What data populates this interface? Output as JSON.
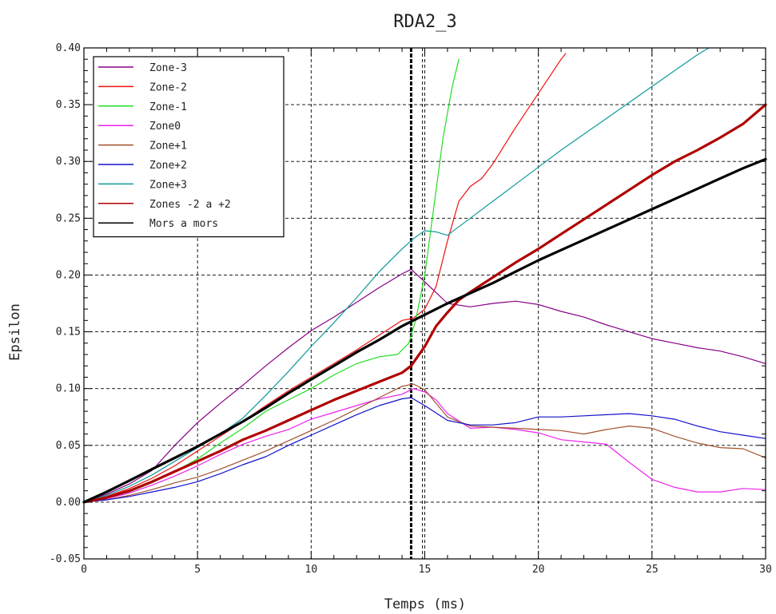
{
  "chart_data": {
    "type": "line",
    "title": "RDA2_3",
    "xlabel": "Temps (ms)",
    "ylabel": "Epsilon",
    "xlim": [
      0,
      30
    ],
    "ylim": [
      -0.05,
      0.4
    ],
    "x_ticks": [
      0,
      5,
      10,
      15,
      20,
      25,
      30
    ],
    "x_tick_labels": [
      "0",
      "5",
      "10",
      "15",
      "20",
      "25",
      "30"
    ],
    "y_ticks": [
      -0.05,
      0.0,
      0.05,
      0.1,
      0.15,
      0.2,
      0.25,
      0.3,
      0.35,
      0.4
    ],
    "y_tick_labels": [
      "-0.05",
      "0.00",
      "0.05",
      "0.10",
      "0.15",
      "0.20",
      "0.25",
      "0.30",
      "0.35",
      "0.40"
    ],
    "grid": true,
    "legend_position": "top-left",
    "vertical_markers": [
      {
        "x": 14.4,
        "style": "thick-dashed"
      },
      {
        "x": 14.9,
        "style": "dashed"
      }
    ],
    "series": [
      {
        "name": "Zone-3",
        "color": "#880088",
        "width": 1.2,
        "x": [
          0,
          1,
          2,
          3,
          4,
          5,
          6,
          7,
          8,
          9,
          10,
          11,
          12,
          13,
          14,
          14.4,
          15,
          16,
          17,
          18,
          19,
          20,
          21,
          22,
          23,
          24,
          25,
          26,
          27,
          28,
          29,
          30
        ],
        "y": [
          0,
          0.007,
          0.016,
          0.028,
          0.05,
          0.07,
          0.087,
          0.103,
          0.12,
          0.136,
          0.151,
          0.163,
          0.176,
          0.189,
          0.201,
          0.205,
          0.194,
          0.175,
          0.172,
          0.175,
          0.177,
          0.174,
          0.168,
          0.163,
          0.156,
          0.15,
          0.144,
          0.14,
          0.136,
          0.133,
          0.128,
          0.122
        ]
      },
      {
        "name": "Zone-2",
        "color": "#ee1111",
        "width": 1.2,
        "x": [
          0,
          1,
          2,
          3,
          4,
          5,
          6,
          7,
          8,
          9,
          10,
          11,
          12,
          13,
          14,
          14.5,
          15,
          15.5,
          16,
          16.5,
          17,
          17.5,
          18,
          19,
          20,
          21,
          21.2
        ],
        "y": [
          0,
          0.005,
          0.012,
          0.021,
          0.032,
          0.045,
          0.058,
          0.071,
          0.085,
          0.098,
          0.11,
          0.122,
          0.134,
          0.147,
          0.16,
          0.162,
          0.17,
          0.19,
          0.23,
          0.265,
          0.278,
          0.285,
          0.298,
          0.33,
          0.36,
          0.39,
          0.395
        ]
      },
      {
        "name": "Zone-1",
        "color": "#22dd22",
        "width": 1.2,
        "x": [
          0,
          1,
          2,
          3,
          4,
          5,
          6,
          7,
          8,
          9,
          10,
          11,
          12,
          13,
          13.8,
          14.3,
          14.6,
          15,
          15.4,
          15.8,
          16.2,
          16.5
        ],
        "y": [
          0,
          0.004,
          0.009,
          0.017,
          0.027,
          0.038,
          0.052,
          0.065,
          0.08,
          0.09,
          0.1,
          0.112,
          0.122,
          0.128,
          0.13,
          0.14,
          0.16,
          0.2,
          0.26,
          0.32,
          0.365,
          0.39
        ]
      },
      {
        "name": "Zone0",
        "color": "#ee22ee",
        "width": 1.2,
        "x": [
          0,
          1,
          2,
          3,
          4,
          5,
          6,
          7,
          8,
          9,
          10,
          11,
          12,
          13,
          14,
          14.5,
          15,
          15.5,
          16,
          17,
          18,
          19,
          20,
          21,
          22,
          23,
          24,
          25,
          26,
          27,
          28,
          29,
          30
        ],
        "y": [
          0,
          0.003,
          0.008,
          0.015,
          0.023,
          0.032,
          0.042,
          0.051,
          0.058,
          0.064,
          0.073,
          0.079,
          0.085,
          0.091,
          0.095,
          0.1,
          0.097,
          0.09,
          0.078,
          0.065,
          0.066,
          0.064,
          0.061,
          0.055,
          0.053,
          0.051,
          0.035,
          0.02,
          0.013,
          0.009,
          0.009,
          0.012,
          0.011
        ]
      },
      {
        "name": "Zone+1",
        "color": "#a0522d",
        "width": 1.2,
        "x": [
          0,
          1,
          2,
          3,
          4,
          5,
          6,
          7,
          8,
          9,
          10,
          11,
          12,
          13,
          14,
          14.5,
          15,
          15.5,
          16,
          17,
          18,
          19,
          20,
          21,
          22,
          23,
          24,
          25,
          26,
          27,
          28,
          29,
          30
        ],
        "y": [
          0,
          0.002,
          0.006,
          0.011,
          0.017,
          0.022,
          0.029,
          0.037,
          0.045,
          0.054,
          0.063,
          0.072,
          0.082,
          0.092,
          0.102,
          0.104,
          0.099,
          0.087,
          0.075,
          0.067,
          0.066,
          0.065,
          0.064,
          0.063,
          0.06,
          0.064,
          0.067,
          0.065,
          0.058,
          0.052,
          0.048,
          0.047,
          0.039
        ]
      },
      {
        "name": "Zone+2",
        "color": "#1111cc",
        "width": 1.2,
        "x": [
          0,
          1,
          2,
          3,
          4,
          5,
          6,
          7,
          8,
          9,
          10,
          11,
          12,
          13,
          14,
          14.4,
          15,
          16,
          17,
          18,
          19,
          20,
          21,
          22,
          23,
          24,
          25,
          26,
          27,
          28,
          29,
          30
        ],
        "y": [
          0,
          0.002,
          0.005,
          0.009,
          0.013,
          0.018,
          0.025,
          0.033,
          0.04,
          0.05,
          0.059,
          0.068,
          0.077,
          0.085,
          0.091,
          0.092,
          0.085,
          0.072,
          0.068,
          0.068,
          0.07,
          0.075,
          0.075,
          0.076,
          0.077,
          0.078,
          0.076,
          0.073,
          0.067,
          0.062,
          0.059,
          0.056
        ]
      },
      {
        "name": "Zone+3",
        "color": "#119999",
        "width": 1.2,
        "x": [
          0,
          1,
          2,
          3,
          4,
          5,
          6,
          7,
          8,
          9,
          10,
          11,
          12,
          13,
          14,
          14.5,
          15,
          15.5,
          16,
          17,
          18,
          19,
          20,
          21,
          22,
          23,
          24,
          25,
          26,
          27,
          27.5
        ],
        "y": [
          0,
          0.006,
          0.014,
          0.024,
          0.036,
          0.048,
          0.06,
          0.074,
          0.094,
          0.115,
          0.137,
          0.158,
          0.18,
          0.203,
          0.223,
          0.232,
          0.239,
          0.238,
          0.235,
          0.25,
          0.265,
          0.28,
          0.295,
          0.31,
          0.324,
          0.338,
          0.352,
          0.366,
          0.38,
          0.394,
          0.4
        ]
      },
      {
        "name": "Zones -2 a +2",
        "color": "#b00000",
        "width": 3.2,
        "x": [
          0,
          1,
          2,
          3,
          4,
          5,
          6,
          7,
          8,
          9,
          10,
          11,
          12,
          13,
          14,
          14.4,
          15,
          15.5,
          16,
          16.5,
          17,
          18,
          19,
          20,
          21,
          22,
          23,
          24,
          25,
          26,
          27,
          28,
          29,
          30
        ],
        "y": [
          0,
          0.004,
          0.01,
          0.018,
          0.027,
          0.036,
          0.045,
          0.055,
          0.063,
          0.072,
          0.081,
          0.09,
          0.098,
          0.106,
          0.114,
          0.12,
          0.137,
          0.155,
          0.167,
          0.178,
          0.185,
          0.198,
          0.211,
          0.223,
          0.236,
          0.249,
          0.262,
          0.275,
          0.288,
          0.3,
          0.31,
          0.321,
          0.333,
          0.35
        ]
      },
      {
        "name": "Mors a mors",
        "color": "#000000",
        "width": 3.2,
        "x": [
          0,
          1,
          2,
          3,
          4,
          5,
          6,
          7,
          8,
          9,
          10,
          11,
          12,
          13,
          14,
          15,
          16,
          17,
          18,
          19,
          20,
          21,
          22,
          23,
          24,
          25,
          26,
          27,
          28,
          29,
          30
        ],
        "y": [
          0,
          0.009,
          0.019,
          0.029,
          0.039,
          0.049,
          0.06,
          0.071,
          0.083,
          0.096,
          0.108,
          0.12,
          0.132,
          0.143,
          0.155,
          0.165,
          0.175,
          0.184,
          0.193,
          0.203,
          0.213,
          0.222,
          0.231,
          0.24,
          0.249,
          0.258,
          0.267,
          0.276,
          0.285,
          0.294,
          0.302
        ]
      }
    ]
  }
}
